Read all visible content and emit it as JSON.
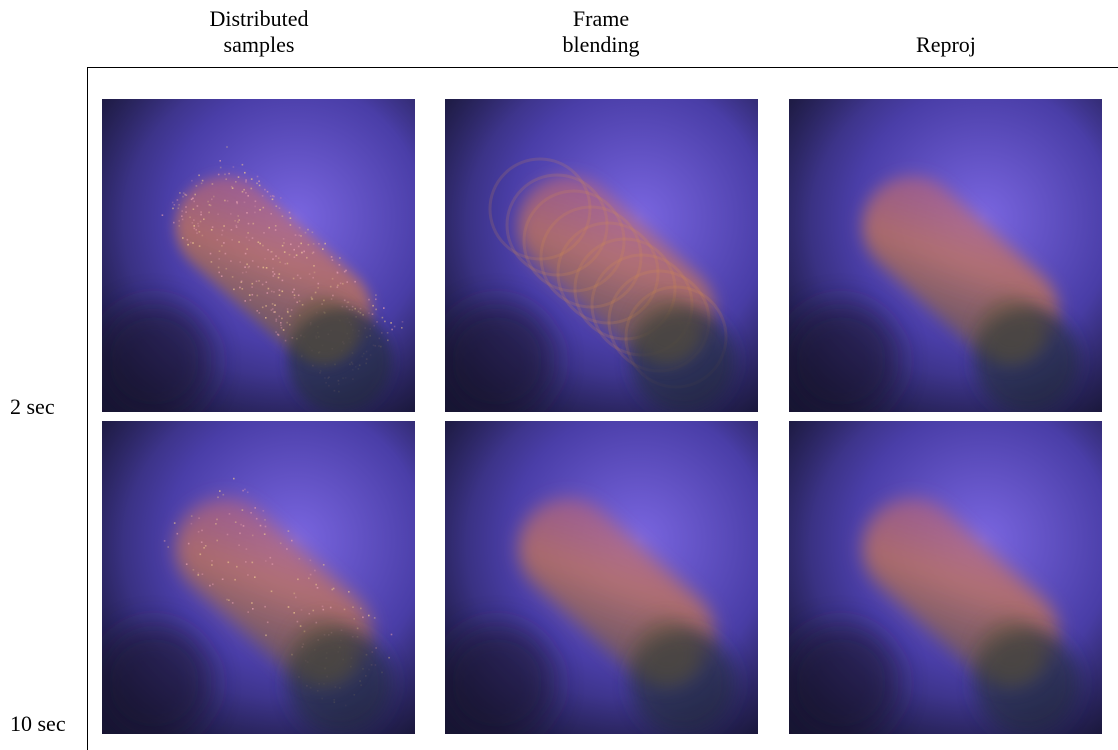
{
  "columns": [
    {
      "label": "Distributed\nsamples",
      "method": "distributed-samples"
    },
    {
      "label": "Frame\nblending",
      "method": "frame-blending"
    },
    {
      "label": "Reproj",
      "method": "reproj"
    }
  ],
  "rows": [
    {
      "label": "2 sec",
      "time": "2s"
    },
    {
      "label": "10 sec",
      "time": "10s"
    }
  ],
  "colors": {
    "background_center": "#7a66e0",
    "background_edge": "#23204f",
    "streak_warm": "#d07a4e",
    "streak_pink": "#c0607a",
    "sphere_dark": "#2c3050",
    "sphere_olive": "#5e5530"
  }
}
